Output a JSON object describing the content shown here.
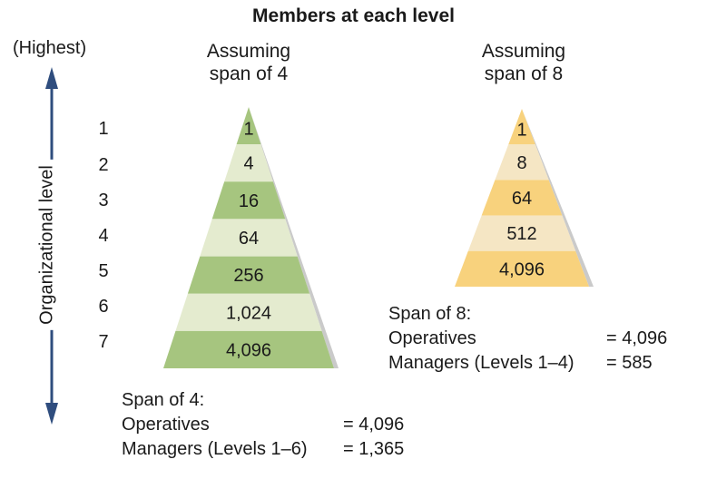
{
  "title": "Members at each level",
  "axis": {
    "top_label": "(Highest)",
    "label": "Organizational level",
    "levels": [
      "1",
      "2",
      "3",
      "4",
      "5",
      "6",
      "7"
    ]
  },
  "pyramids": [
    {
      "header_line1": "Assuming",
      "header_line2": "span of 4",
      "values": [
        "1",
        "4",
        "16",
        "64",
        "256",
        "1,024",
        "4,096"
      ],
      "colors": {
        "dark": "#a6c57f",
        "light": "#e4ebcf"
      },
      "summary": {
        "heading": "Span of 4:",
        "operatives_label": "Operatives",
        "operatives_value": "= 4,096",
        "managers_label": "Managers (Levels 1–6)",
        "managers_value": "= 1,365"
      }
    },
    {
      "header_line1": "Assuming",
      "header_line2": "span of 8",
      "values": [
        "1",
        "8",
        "64",
        "512",
        "4,096"
      ],
      "colors": {
        "dark": "#f8d27d",
        "light": "#f5e6c4"
      },
      "summary": {
        "heading": "Span of 8:",
        "operatives_label": "Operatives",
        "operatives_value": "= 4,096",
        "managers_label": "Managers (Levels 1–4)",
        "managers_value": "= 585"
      }
    }
  ]
}
